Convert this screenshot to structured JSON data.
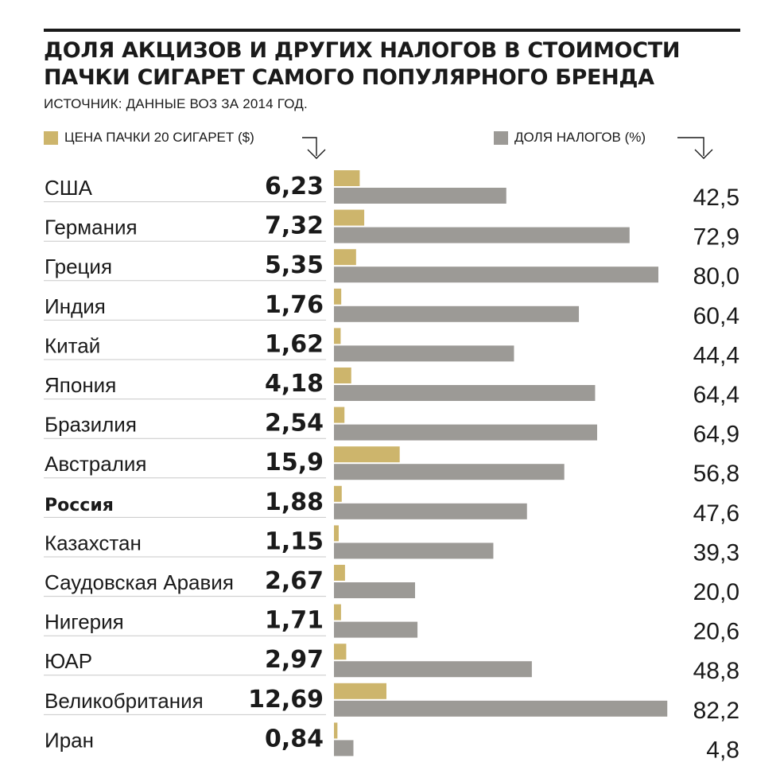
{
  "header": {
    "title_line1": "ДОЛЯ АКЦИЗОВ И ДРУГИХ НАЛОГОВ В СТОИМОСТИ",
    "title_line2": "ПАЧКИ СИГАРЕТ САМОГО ПОПУЛЯРНОГО БРЕНДА",
    "source": "ИСТОЧНИК: ДАННЫЕ ВОЗ ЗА 2014 ГОД."
  },
  "legend": {
    "price_label": "ЦЕНА ПАЧКИ 20 СИГАРЕТ ($)",
    "tax_label": "ДОЛЯ НАЛОГОВ (%)"
  },
  "colors": {
    "price": "#cdb56c",
    "tax": "#9c9a96",
    "divider": "#c8c8c8"
  },
  "chart_data": {
    "type": "bar",
    "orientation": "horizontal",
    "categories": [
      "США",
      "Германия",
      "Греция",
      "Индия",
      "Китай",
      "Япония",
      "Бразилия",
      "Австралия",
      "Россия",
      "Казахстан",
      "Саудовская Аравия",
      "Нигерия",
      "ЮАР",
      "Великобритания",
      "Иран"
    ],
    "highlight": "Россия",
    "series": [
      {
        "name": "ЦЕНА ПАЧКИ 20 СИГАРЕТ ($)",
        "values": [
          6.23,
          7.32,
          5.35,
          1.76,
          1.62,
          4.18,
          2.54,
          15.9,
          1.88,
          1.15,
          2.67,
          1.71,
          2.97,
          12.69,
          0.84
        ],
        "labels": [
          "6,23",
          "7,32",
          "5,35",
          "1,76",
          "1,62",
          "4,18",
          "2,54",
          "15,9",
          "1,88",
          "1,15",
          "2,67",
          "1,71",
          "2,97",
          "12,69",
          "0,84"
        ]
      },
      {
        "name": "ДОЛЯ НАЛОГОВ (%)",
        "values": [
          42.5,
          72.9,
          80.0,
          60.4,
          44.4,
          64.4,
          64.9,
          56.8,
          47.6,
          39.3,
          20.0,
          20.6,
          48.8,
          82.2,
          4.8
        ],
        "labels": [
          "42,5",
          "72,9",
          "80,0",
          "60,4",
          "44,4",
          "64,4",
          "64,9",
          "56,8",
          "47,6",
          "39,3",
          "20,0",
          "20,6",
          "48,8",
          "82,2",
          "4,8"
        ]
      }
    ]
  }
}
